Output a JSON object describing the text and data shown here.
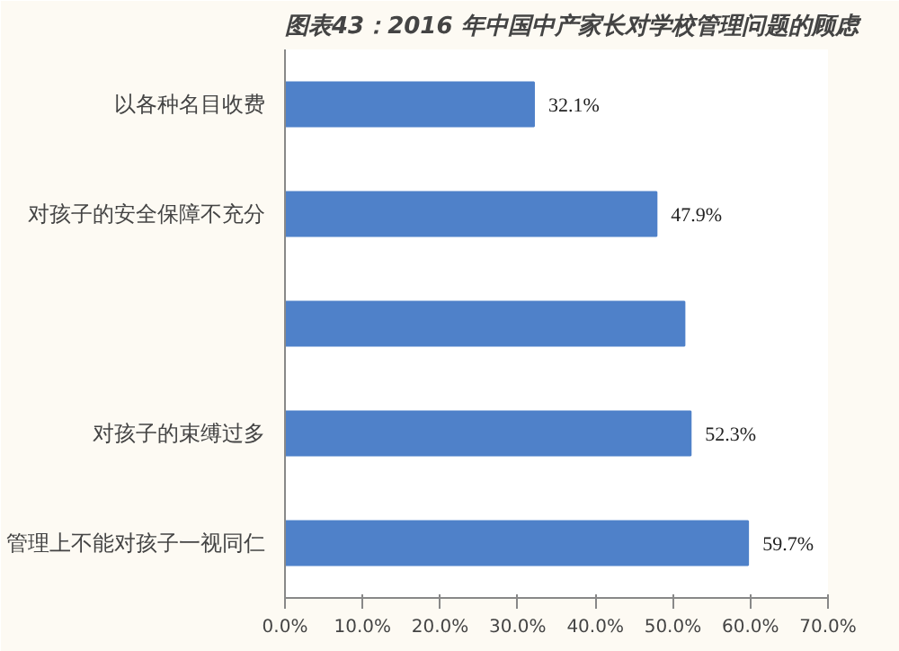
{
  "chart_data": {
    "type": "bar",
    "orientation": "horizontal",
    "title": "图表43：2016 年中国中产家长对学校管理问题的顾虑",
    "categories": [
      "以各种名目收费",
      "对孩子的安全保障不充分",
      null,
      "对孩子的束缚过多",
      "管理上不能对孩子一视同仁"
    ],
    "values": [
      32.1,
      47.9,
      51.5,
      52.3,
      59.7
    ],
    "value_labels": [
      "32.1%",
      "47.9%",
      null,
      "52.3%",
      "59.7%"
    ],
    "color": "#4f81c9",
    "xlim": [
      0,
      70
    ],
    "xticks": [
      {
        "value": 0,
        "label": "0.0%"
      },
      {
        "value": 10,
        "label": "10.0%"
      },
      {
        "value": 20,
        "label": "20.0%"
      },
      {
        "value": 30,
        "label": "30.0%"
      },
      {
        "value": 40,
        "label": "40.0%"
      },
      {
        "value": 50,
        "label": "50.0%"
      },
      {
        "value": 60,
        "label": "60.0%"
      },
      {
        "value": 70,
        "label": "70.0%"
      }
    ],
    "grid": false
  }
}
